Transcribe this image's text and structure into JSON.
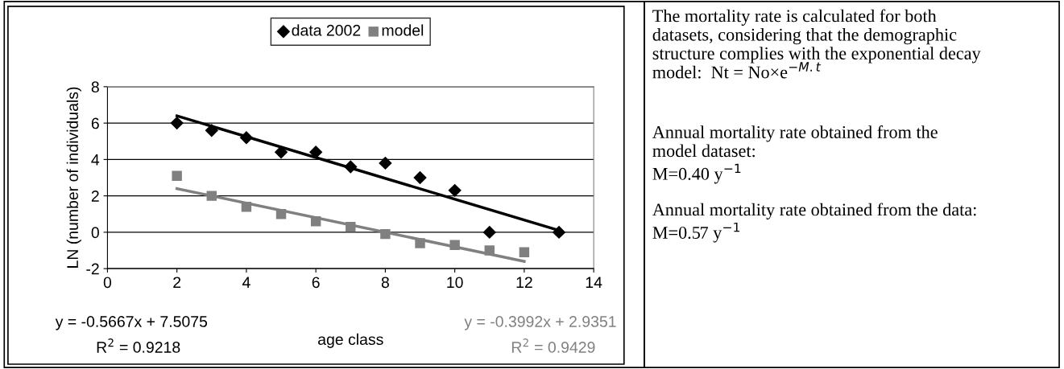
{
  "chart_data": {
    "type": "scatter",
    "xlabel": "age class",
    "ylabel": "LN (number of individuals)",
    "xlim": [
      0,
      14
    ],
    "xticks": [
      0,
      2,
      4,
      6,
      8,
      10,
      12,
      14
    ],
    "ylim": [
      -2,
      8
    ],
    "yticks": [
      -2,
      0,
      2,
      4,
      6,
      8
    ],
    "grid": "y",
    "legend": "top",
    "series": [
      {
        "name": "data 2002",
        "color": "#000000",
        "marker": "diamond",
        "x": [
          2,
          3,
          4,
          5,
          6,
          7,
          8,
          9,
          10,
          11,
          13
        ],
        "values": [
          6.0,
          5.6,
          5.2,
          4.4,
          4.4,
          3.6,
          3.8,
          3.0,
          2.3,
          0,
          0
        ]
      },
      {
        "name": "model",
        "color": "#808080",
        "marker": "square",
        "x": [
          2,
          3,
          4,
          5,
          6,
          7,
          8,
          9,
          10,
          11,
          12
        ],
        "values": [
          3.1,
          2.0,
          1.4,
          1.0,
          0.6,
          0.3,
          -0.1,
          -0.6,
          -0.7,
          -1.0,
          -1.1
        ]
      },
      {
        "type": "line",
        "color": "#000000",
        "x": [
          2,
          13
        ],
        "values": [
          6.4,
          0.1
        ]
      },
      {
        "type": "line",
        "color": "#808080",
        "x": [
          2,
          12
        ],
        "values": [
          2.4,
          -1.6
        ]
      }
    ],
    "annotations": [
      "y = -0.5667x + 7.5075",
      "R$^{2}$ = 0.9218",
      "y = -0.3992x + 2.9351",
      "R$^{2}$ = 0.9429",
      "The mortality rate is calculated for both\ndatasets, considering that the demographic\nstructure complies with the exponential decay\nmodel:  Nt = No×e$^{−M.t}$",
      "Annual mortality rate obtained from the\nmodel dataset:\nM=0.40 y$^{−1}$",
      "Annual mortality rate obtained from the data:\nM=0.57 y$^{−1}$"
    ]
  }
}
